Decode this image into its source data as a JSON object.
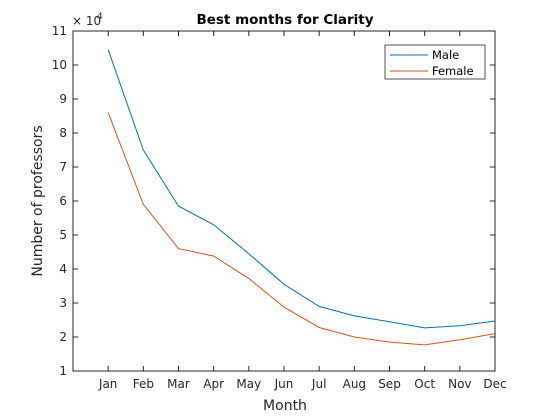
{
  "chart_data": {
    "type": "line",
    "title": "Best months for Clarity",
    "xlabel": "Month",
    "ylabel": "Number of professors",
    "y_exponent_base": "× 10",
    "y_exponent_power": "4",
    "categories": [
      "Jan",
      "Feb",
      "Mar",
      "Apr",
      "May",
      "Jun",
      "Jul",
      "Aug",
      "Sep",
      "Oct",
      "Nov",
      "Dec"
    ],
    "yticks": [
      1,
      2,
      3,
      4,
      5,
      6,
      7,
      8,
      9,
      10,
      11
    ],
    "ylim": [
      1,
      11
    ],
    "xlim": [
      0,
      12
    ],
    "grid": false,
    "legend_position": "top-right",
    "series": [
      {
        "name": "Male",
        "color": "#0072BD",
        "values": [
          10.45,
          7.5,
          5.85,
          5.3,
          4.45,
          3.55,
          2.9,
          2.62,
          2.45,
          2.27,
          2.33,
          2.47
        ]
      },
      {
        "name": "Female",
        "color": "#D95319",
        "values": [
          8.6,
          5.9,
          4.6,
          4.38,
          3.72,
          2.88,
          2.28,
          2.0,
          1.85,
          1.77,
          1.92,
          2.1
        ]
      }
    ]
  }
}
